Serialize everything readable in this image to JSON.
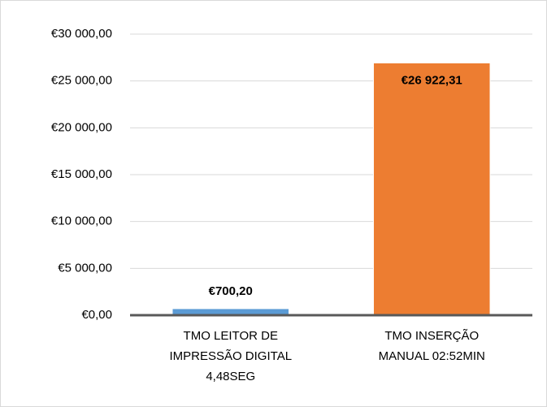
{
  "chart_data": {
    "type": "bar",
    "categories": [
      [
        "TMO LEITOR DE",
        "IMPRESSÃO DIGITAL",
        "4,48SEG"
      ],
      [
        "TMO INSERÇÃO",
        "MANUAL 02:52MIN"
      ]
    ],
    "values": [
      700.2,
      26922.31
    ],
    "value_labels": [
      "€700,20",
      "€26 922,31"
    ],
    "colors": [
      "#5b9bd5",
      "#ed7d31"
    ],
    "ylim": [
      0,
      30000
    ],
    "yticks": [
      {
        "value": 0,
        "label": "€0,00"
      },
      {
        "value": 5000,
        "label": "€5 000,00"
      },
      {
        "value": 10000,
        "label": "€10 000,00"
      },
      {
        "value": 15000,
        "label": "€15 000,00"
      },
      {
        "value": 20000,
        "label": "€20 000,00"
      },
      {
        "value": 25000,
        "label": "€25 000,00"
      },
      {
        "value": 30000,
        "label": "€30 000,00"
      }
    ],
    "grid": true
  }
}
